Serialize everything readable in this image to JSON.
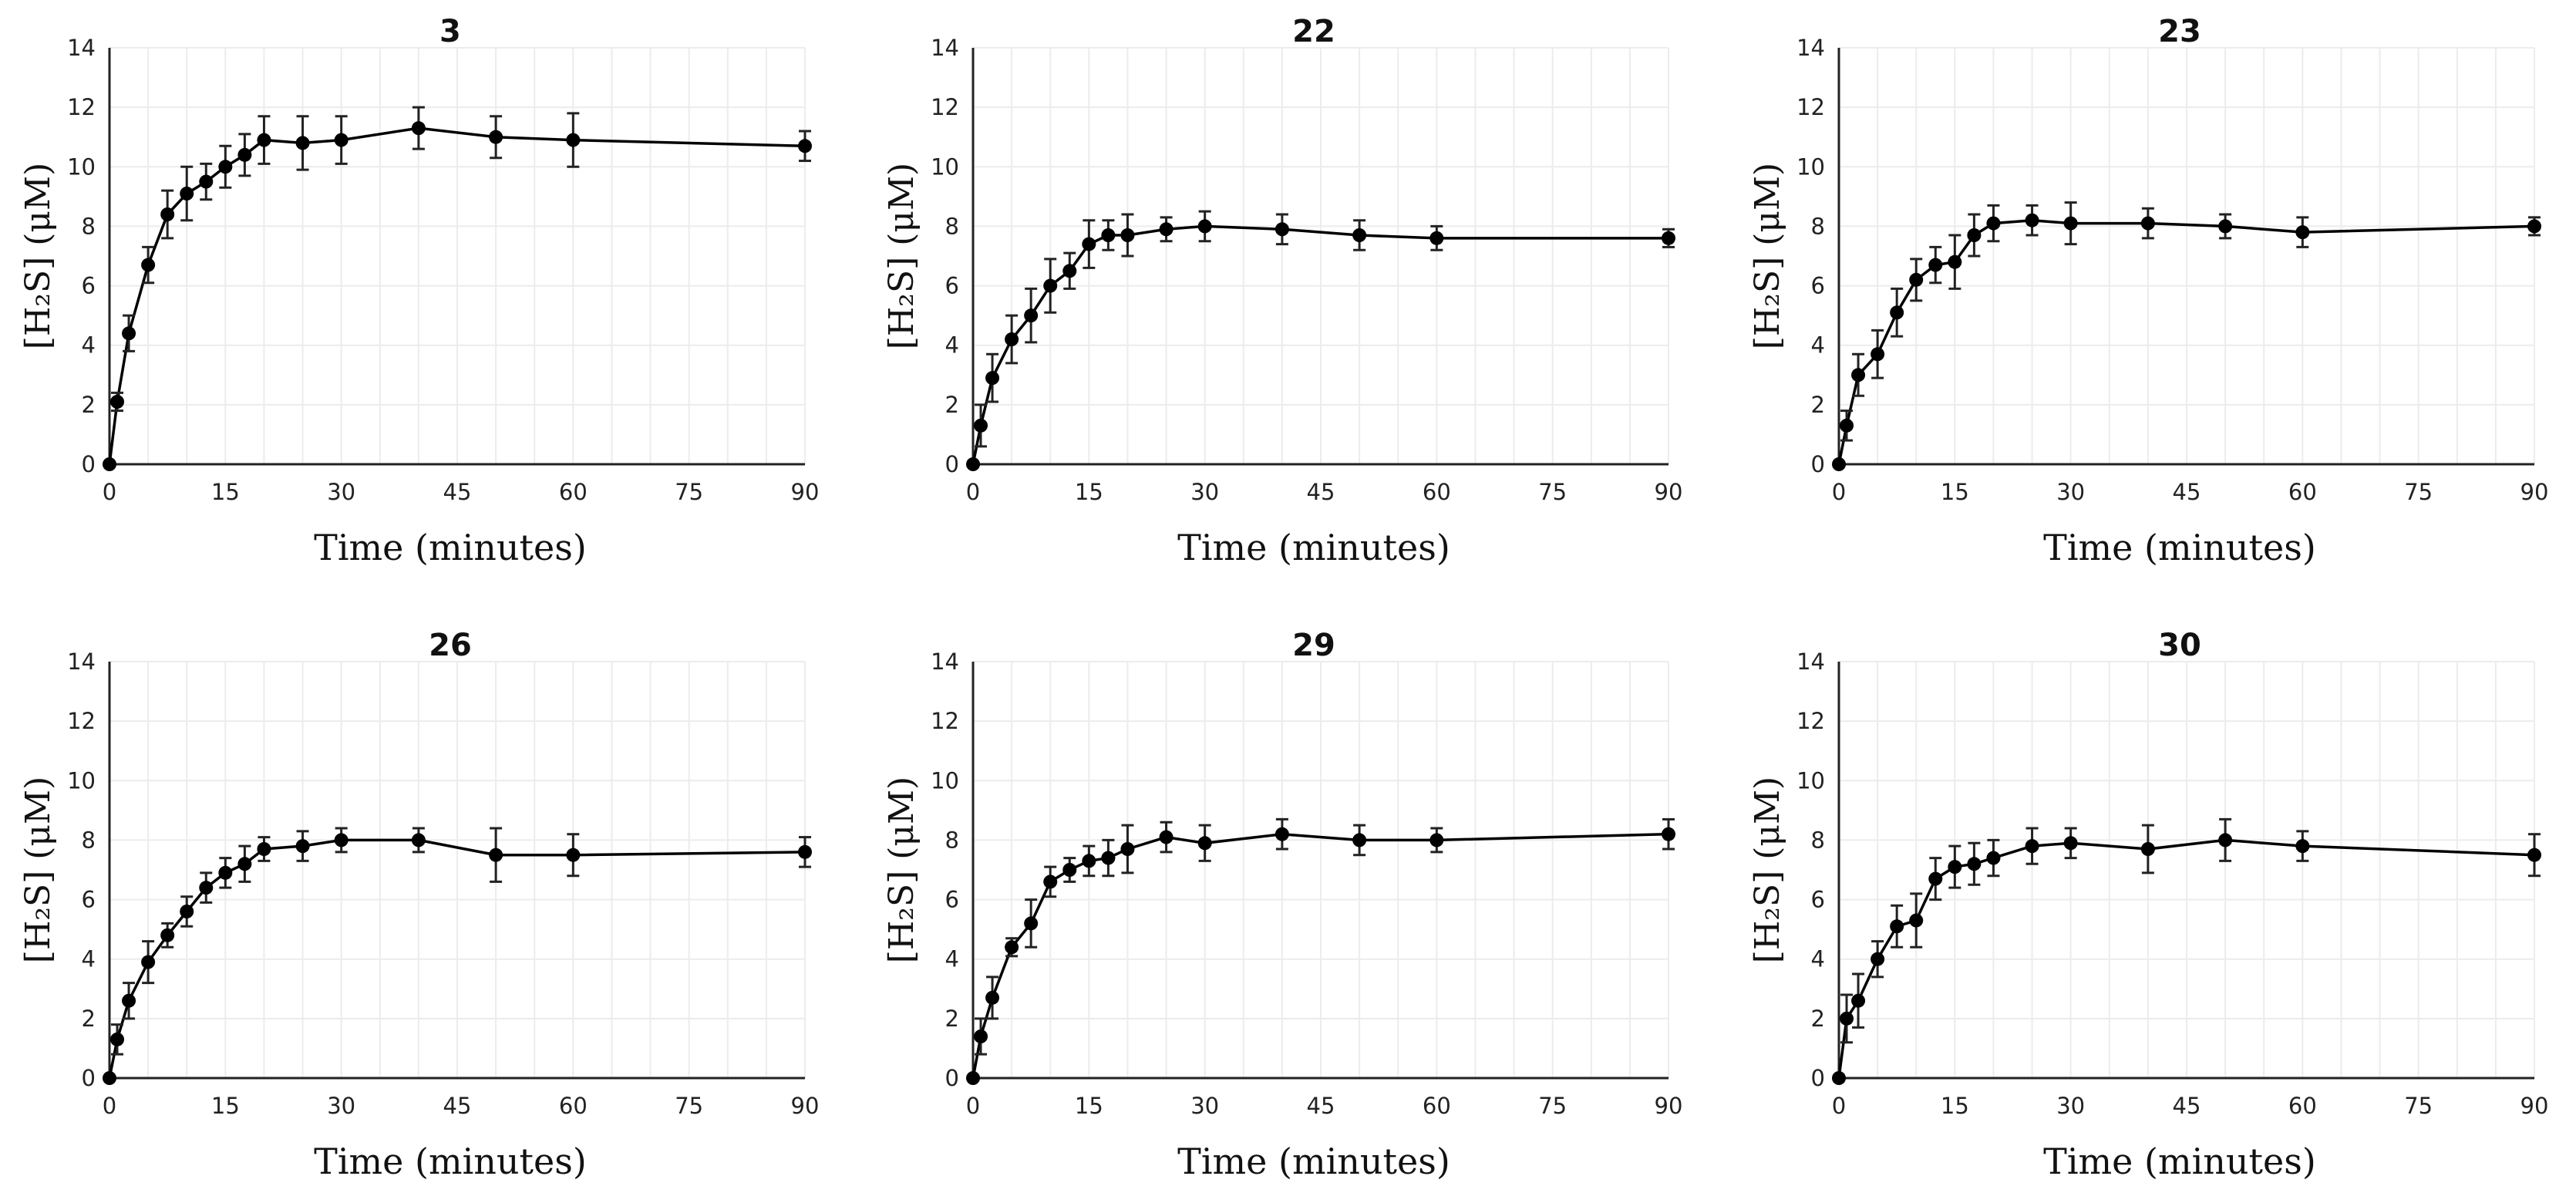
{
  "chart_data": [
    {
      "type": "line",
      "title": "3",
      "xlabel": "Time (minutes)",
      "ylabel": "[H₂S] (μM)",
      "xlim": [
        0,
        90
      ],
      "ylim": [
        0,
        14
      ],
      "xticks": [
        "0",
        "15",
        "30",
        "45",
        "60",
        "75",
        "90"
      ],
      "yticks": [
        "0",
        "2",
        "4",
        "6",
        "8",
        "10",
        "12",
        "14"
      ],
      "x": [
        0,
        1,
        2.5,
        5,
        7.5,
        10,
        12.5,
        15,
        17.5,
        20,
        25,
        30,
        40,
        50,
        60,
        90
      ],
      "y": [
        0,
        2.1,
        4.4,
        6.7,
        8.4,
        9.1,
        9.5,
        10.0,
        10.4,
        10.9,
        10.8,
        10.9,
        11.3,
        11.0,
        10.9,
        10.7
      ],
      "err": [
        0,
        0.3,
        0.6,
        0.6,
        0.8,
        0.9,
        0.6,
        0.7,
        0.7,
        0.8,
        0.9,
        0.8,
        0.7,
        0.7,
        0.9,
        0.5
      ]
    },
    {
      "type": "line",
      "title": "22",
      "xlabel": "Time (minutes)",
      "ylabel": "[H₂S] (μM)",
      "xlim": [
        0,
        90
      ],
      "ylim": [
        0,
        14
      ],
      "xticks": [
        "0",
        "15",
        "30",
        "45",
        "60",
        "75",
        "90"
      ],
      "yticks": [
        "0",
        "2",
        "4",
        "6",
        "8",
        "10",
        "12",
        "14"
      ],
      "x": [
        0,
        1,
        2.5,
        5,
        7.5,
        10,
        12.5,
        15,
        17.5,
        20,
        25,
        30,
        40,
        50,
        60,
        90
      ],
      "y": [
        0,
        1.3,
        2.9,
        4.2,
        5.0,
        6.0,
        6.5,
        7.4,
        7.7,
        7.7,
        7.9,
        8.0,
        7.9,
        7.7,
        7.6,
        7.6
      ],
      "err": [
        0,
        0.7,
        0.8,
        0.8,
        0.9,
        0.9,
        0.6,
        0.8,
        0.5,
        0.7,
        0.4,
        0.5,
        0.5,
        0.5,
        0.4,
        0.3
      ]
    },
    {
      "type": "line",
      "title": "23",
      "xlabel": "Time (minutes)",
      "ylabel": "[H₂S] (μM)",
      "xlim": [
        0,
        90
      ],
      "ylim": [
        0,
        14
      ],
      "xticks": [
        "0",
        "15",
        "30",
        "45",
        "60",
        "75",
        "90"
      ],
      "yticks": [
        "0",
        "2",
        "4",
        "6",
        "8",
        "10",
        "12",
        "14"
      ],
      "x": [
        0,
        1,
        2.5,
        5,
        7.5,
        10,
        12.5,
        15,
        17.5,
        20,
        25,
        30,
        40,
        50,
        60,
        90
      ],
      "y": [
        0,
        1.3,
        3.0,
        3.7,
        5.1,
        6.2,
        6.7,
        6.8,
        7.7,
        8.1,
        8.2,
        8.1,
        8.1,
        8.0,
        7.8,
        8.0
      ],
      "err": [
        0,
        0.5,
        0.7,
        0.8,
        0.8,
        0.7,
        0.6,
        0.9,
        0.7,
        0.6,
        0.5,
        0.7,
        0.5,
        0.4,
        0.5,
        0.3
      ]
    },
    {
      "type": "line",
      "title": "26",
      "xlabel": "Time (minutes)",
      "ylabel": "[H₂S] (μM)",
      "xlim": [
        0,
        90
      ],
      "ylim": [
        0,
        14
      ],
      "xticks": [
        "0",
        "15",
        "30",
        "45",
        "60",
        "75",
        "90"
      ],
      "yticks": [
        "0",
        "2",
        "4",
        "6",
        "8",
        "10",
        "12",
        "14"
      ],
      "x": [
        0,
        1,
        2.5,
        5,
        7.5,
        10,
        12.5,
        15,
        17.5,
        20,
        25,
        30,
        40,
        50,
        60,
        90
      ],
      "y": [
        0,
        1.3,
        2.6,
        3.9,
        4.8,
        5.6,
        6.4,
        6.9,
        7.2,
        7.7,
        7.8,
        8.0,
        8.0,
        7.5,
        7.5,
        7.6
      ],
      "err": [
        0,
        0.5,
        0.6,
        0.7,
        0.4,
        0.5,
        0.5,
        0.5,
        0.6,
        0.4,
        0.5,
        0.4,
        0.4,
        0.9,
        0.7,
        0.5
      ]
    },
    {
      "type": "line",
      "title": "29",
      "xlabel": "Time (minutes)",
      "ylabel": "[H₂S] (μM)",
      "xlim": [
        0,
        90
      ],
      "ylim": [
        0,
        14
      ],
      "xticks": [
        "0",
        "15",
        "30",
        "45",
        "60",
        "75",
        "90"
      ],
      "yticks": [
        "0",
        "2",
        "4",
        "6",
        "8",
        "10",
        "12",
        "14"
      ],
      "x": [
        0,
        1,
        2.5,
        5,
        7.5,
        10,
        12.5,
        15,
        17.5,
        20,
        25,
        30,
        40,
        50,
        60,
        90
      ],
      "y": [
        0,
        1.4,
        2.7,
        4.4,
        5.2,
        6.6,
        7.0,
        7.3,
        7.4,
        7.7,
        8.1,
        7.9,
        8.2,
        8.0,
        8.0,
        8.2
      ],
      "err": [
        0,
        0.6,
        0.7,
        0.3,
        0.8,
        0.5,
        0.4,
        0.5,
        0.6,
        0.8,
        0.5,
        0.6,
        0.5,
        0.5,
        0.4,
        0.5
      ]
    },
    {
      "type": "line",
      "title": "30",
      "xlabel": "Time (minutes)",
      "ylabel": "[H₂S] (μM)",
      "xlim": [
        0,
        90
      ],
      "ylim": [
        0,
        14
      ],
      "xticks": [
        "0",
        "15",
        "30",
        "45",
        "60",
        "75",
        "90"
      ],
      "yticks": [
        "0",
        "2",
        "4",
        "6",
        "8",
        "10",
        "12",
        "14"
      ],
      "x": [
        0,
        1,
        2.5,
        5,
        7.5,
        10,
        12.5,
        15,
        17.5,
        20,
        25,
        30,
        40,
        50,
        60,
        90
      ],
      "y": [
        0,
        2.0,
        2.6,
        4.0,
        5.1,
        5.3,
        6.7,
        7.1,
        7.2,
        7.4,
        7.8,
        7.9,
        7.7,
        8.0,
        7.8,
        7.5
      ],
      "err": [
        0,
        0.8,
        0.9,
        0.6,
        0.7,
        0.9,
        0.7,
        0.7,
        0.7,
        0.6,
        0.6,
        0.5,
        0.8,
        0.7,
        0.5,
        0.7
      ]
    }
  ]
}
